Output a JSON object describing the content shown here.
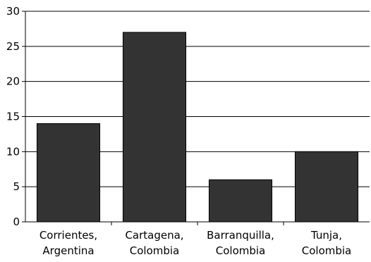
{
  "chart_data": {
    "type": "bar",
    "categories": [
      [
        "Corrientes,",
        "Argentina"
      ],
      [
        "Cartagena,",
        "Colombia"
      ],
      [
        "Barranquilla,",
        "Colombia"
      ],
      [
        "Tunja,",
        "Colombia"
      ]
    ],
    "values": [
      14,
      27,
      6,
      10
    ],
    "ylim": [
      0,
      30
    ],
    "yticks": [
      "0",
      "5",
      "10",
      "15",
      "20",
      "25",
      "30"
    ],
    "title": "",
    "xlabel": "",
    "ylabel": "",
    "grid": true,
    "bar_color": "#333333"
  }
}
